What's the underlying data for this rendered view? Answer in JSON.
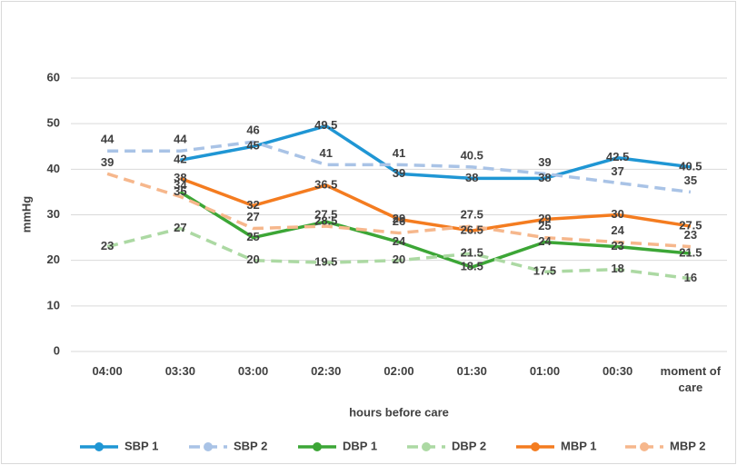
{
  "chart_data": {
    "type": "line",
    "categories": [
      "04:00",
      "03:30",
      "03:00",
      "02:30",
      "02:00",
      "01:30",
      "01:00",
      "00:30",
      "moment of care"
    ],
    "series": [
      {
        "name": "SBP 1",
        "color": "#1f96d4",
        "dashed": false,
        "values": [
          null,
          42,
          45,
          49.5,
          39,
          38,
          38,
          42.5,
          40.5
        ]
      },
      {
        "name": "SBP 2",
        "color": "#a9c3e6",
        "dashed": true,
        "values": [
          44,
          44,
          46,
          41,
          41,
          40.5,
          39,
          37,
          35
        ]
      },
      {
        "name": "DBP 1",
        "color": "#3ca636",
        "dashed": false,
        "values": [
          null,
          35,
          25,
          28.5,
          24,
          18.5,
          24,
          23,
          21.5
        ]
      },
      {
        "name": "DBP 2",
        "color": "#acd9a3",
        "dashed": true,
        "values": [
          23,
          27,
          20,
          19.5,
          20,
          21.5,
          17.5,
          18,
          16
        ]
      },
      {
        "name": "MBP 1",
        "color": "#f47c20",
        "dashed": false,
        "values": [
          null,
          38,
          32,
          36.5,
          29,
          26.5,
          29,
          30,
          27.5
        ]
      },
      {
        "name": "MBP 2",
        "color": "#f6b78c",
        "dashed": true,
        "values": [
          39,
          34,
          27,
          27.5,
          26,
          27.5,
          25,
          24,
          23
        ]
      }
    ],
    "ylabel": "mmHg",
    "xlabel": "hours before care",
    "ylim": [
      0,
      60
    ],
    "yticks": [
      0,
      10,
      20,
      30,
      40,
      50,
      60
    ],
    "grid": true,
    "legend": "bottom"
  }
}
